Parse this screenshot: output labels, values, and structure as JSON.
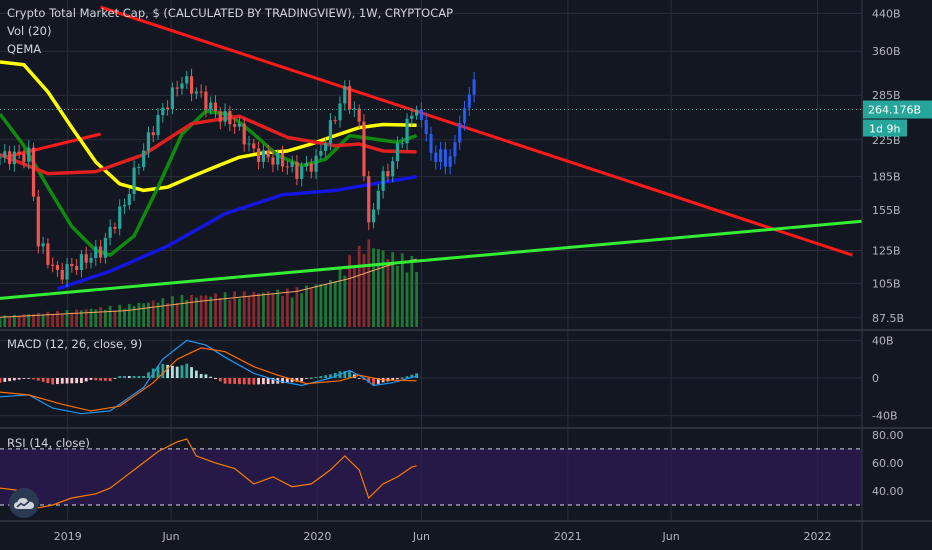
{
  "header": {
    "title": "Crypto Total Market Cap, $ (CALCULATED BY TRADINGVIEW), 1W, CRYPTOCAP",
    "vol_label": "Vol (20)",
    "qema_label": "QEMA"
  },
  "price_badge": {
    "value": "264.176B",
    "countdown": "1d 9h"
  },
  "macd_panel": {
    "label": "MACD (12, 26, close, 9)"
  },
  "rsi_panel": {
    "label": "RSI (14, close)"
  },
  "colors": {
    "background": "#131722",
    "up": "#26a69a",
    "down": "#ef5350",
    "projection": "#2962ff",
    "ema_yellow": "#ffff00",
    "ema_green": "#0f8a0f",
    "ema_red": "#e02020",
    "ema_blue": "#1515e0",
    "trend_red": "#ff1a1a",
    "trend_green": "#33ee33",
    "badge": "#26a69a",
    "rsi_line": "#f57c00",
    "rsi_band": "#311b5a"
  },
  "chart_data": [
    {
      "type": "candlestick",
      "name": "price",
      "y_scale": "log",
      "ylim": [
        82,
        460
      ],
      "y_ticks": [
        87.5,
        105,
        125,
        155,
        185,
        225,
        285,
        360,
        440
      ],
      "y_tick_labels": [
        "87.5B",
        "105B",
        "125B",
        "155B",
        "185B",
        "225B",
        "285B",
        "360B",
        "440B"
      ],
      "x_range": [
        "2018-09-24",
        "2022-03-07"
      ],
      "x_ticks": [
        "2019-01-01",
        "2019-06-01",
        "2020-01-01",
        "2020-06-01",
        "2021-01-01",
        "2021-06-01",
        "2022-01-01"
      ],
      "x_tick_labels": [
        "2019",
        "Jun",
        "2020",
        "Jun",
        "2021",
        "Jun",
        "2022"
      ],
      "last_price": 264.176,
      "close_anchors": [
        [
          "2018-09-24",
          205
        ],
        [
          "2018-11-05",
          208
        ],
        [
          "2018-11-19",
          130
        ],
        [
          "2018-12-17",
          110
        ],
        [
          "2019-01-21",
          118
        ],
        [
          "2019-02-18",
          125
        ],
        [
          "2019-03-25",
          160
        ],
        [
          "2019-05-06",
          240
        ],
        [
          "2019-06-17",
          310
        ],
        [
          "2019-07-08",
          290
        ],
        [
          "2019-08-05",
          260
        ],
        [
          "2019-09-02",
          245
        ],
        [
          "2019-09-30",
          210
        ],
        [
          "2019-10-21",
          205
        ],
        [
          "2019-11-11",
          200
        ],
        [
          "2019-12-02",
          190
        ],
        [
          "2019-12-30",
          200
        ],
        [
          "2020-01-20",
          240
        ],
        [
          "2020-02-10",
          290
        ],
        [
          "2020-03-02",
          245
        ],
        [
          "2020-03-16",
          140
        ],
        [
          "2020-03-30",
          175
        ],
        [
          "2020-04-20",
          200
        ],
        [
          "2020-05-11",
          245
        ],
        [
          "2020-05-25",
          264
        ]
      ],
      "projection_closes": [
        [
          "2020-06-01",
          250
        ],
        [
          "2020-06-08",
          232
        ],
        [
          "2020-06-15",
          210
        ],
        [
          "2020-06-22",
          200
        ],
        [
          "2020-06-29",
          214
        ],
        [
          "2020-07-06",
          195
        ],
        [
          "2020-07-13",
          206
        ],
        [
          "2020-07-20",
          222
        ],
        [
          "2020-07-27",
          246
        ],
        [
          "2020-08-03",
          266
        ],
        [
          "2020-08-10",
          286
        ],
        [
          "2020-08-17",
          310
        ]
      ],
      "series": [
        {
          "key": "ema_yellow",
          "points": [
            [
              "2018-09-24",
              340
            ],
            [
              "2018-10-29",
              335
            ],
            [
              "2018-12-03",
              290
            ],
            [
              "2019-01-07",
              240
            ],
            [
              "2019-02-11",
              200
            ],
            [
              "2019-03-18",
              178
            ],
            [
              "2019-04-22",
              172
            ],
            [
              "2019-05-27",
              175
            ],
            [
              "2019-07-01",
              185
            ],
            [
              "2019-08-05",
              195
            ],
            [
              "2019-09-09",
              205
            ],
            [
              "2019-10-14",
              210
            ],
            [
              "2019-11-18",
              212
            ],
            [
              "2019-12-23",
              220
            ],
            [
              "2020-01-27",
              230
            ],
            [
              "2020-03-02",
              240
            ],
            [
              "2020-04-06",
              244
            ],
            [
              "2020-05-25",
              243
            ]
          ]
        },
        {
          "key": "ema_green",
          "points": [
            [
              "2018-09-24",
              258
            ],
            [
              "2018-10-29",
              218
            ],
            [
              "2018-12-03",
              175
            ],
            [
              "2019-01-07",
              142
            ],
            [
              "2019-02-11",
              125
            ],
            [
              "2019-03-04",
              122
            ],
            [
              "2019-04-08",
              135
            ],
            [
              "2019-05-13",
              175
            ],
            [
              "2019-06-17",
              232
            ],
            [
              "2019-07-22",
              262
            ],
            [
              "2019-08-26",
              257
            ],
            [
              "2019-09-30",
              232
            ],
            [
              "2019-11-04",
              207
            ],
            [
              "2019-12-09",
              196
            ],
            [
              "2020-01-13",
              203
            ],
            [
              "2020-02-17",
              230
            ],
            [
              "2020-03-23",
              226
            ],
            [
              "2020-04-27",
              222
            ],
            [
              "2020-05-25",
              230
            ]
          ]
        },
        {
          "key": "ema_red",
          "points": [
            [
              "2018-09-24",
              208
            ],
            [
              "2018-12-03",
              188
            ],
            [
              "2019-02-11",
              190
            ],
            [
              "2019-04-22",
              208
            ],
            [
              "2019-07-01",
              245
            ],
            [
              "2019-09-09",
              255
            ],
            [
              "2019-11-18",
              228
            ],
            [
              "2020-01-27",
              218
            ],
            [
              "2020-03-02",
              220
            ],
            [
              "2020-04-06",
              212
            ],
            [
              "2020-05-25",
              211
            ]
          ]
        },
        {
          "key": "ema_blue",
          "points": [
            [
              "2018-12-17",
              102
            ],
            [
              "2019-03-04",
              112
            ],
            [
              "2019-05-27",
              128
            ],
            [
              "2019-08-19",
              152
            ],
            [
              "2019-11-11",
              168
            ],
            [
              "2020-01-27",
              172
            ],
            [
              "2020-05-25",
              185
            ]
          ]
        }
      ],
      "trendlines": [
        {
          "key": "trend_red",
          "from": [
            "2018-10-01",
            205
          ],
          "to": [
            "2019-02-18",
            232
          ]
        },
        {
          "key": "trend_red",
          "from": [
            "2019-02-18",
            455
          ],
          "to": [
            "2022-02-21",
            122
          ]
        },
        {
          "key": "trend_green",
          "from": [
            "2018-09-24",
            97
          ],
          "to": [
            "2022-03-07",
            146
          ]
        }
      ],
      "volume": [
        [
          "2018-09-24",
          3.5
        ],
        [
          "2018-12-17",
          5
        ],
        [
          "2019-03-25",
          7
        ],
        [
          "2019-06-17",
          10
        ],
        [
          "2019-09-02",
          11
        ],
        [
          "2019-11-25",
          12
        ],
        [
          "2020-01-20",
          15
        ],
        [
          "2020-02-24",
          24
        ],
        [
          "2020-03-16",
          28
        ],
        [
          "2020-04-13",
          24
        ],
        [
          "2020-05-18",
          22
        ],
        [
          "2020-05-25",
          21
        ]
      ],
      "volume_ma": [
        [
          "2018-09-24",
          3
        ],
        [
          "2019-03-25",
          5
        ],
        [
          "2019-07-15",
          8
        ],
        [
          "2019-12-02",
          11
        ],
        [
          "2020-02-17",
          15
        ],
        [
          "2020-04-13",
          19
        ],
        [
          "2020-05-25",
          21
        ]
      ]
    },
    {
      "type": "line",
      "name": "MACD",
      "ylim": [
        -50,
        50
      ],
      "y_ticks": [
        40,
        0,
        -40
      ],
      "y_tick_labels": [
        "40B",
        "0",
        "-40B"
      ],
      "macd": [
        [
          "2018-09-24",
          -20
        ],
        [
          "2018-11-05",
          -18
        ],
        [
          "2018-12-10",
          -32
        ],
        [
          "2019-01-21",
          -38
        ],
        [
          "2019-03-04",
          -35
        ],
        [
          "2019-04-22",
          -10
        ],
        [
          "2019-05-20",
          20
        ],
        [
          "2019-06-24",
          40
        ],
        [
          "2019-07-22",
          35
        ],
        [
          "2019-08-19",
          22
        ],
        [
          "2019-09-30",
          5
        ],
        [
          "2019-11-04",
          -3
        ],
        [
          "2019-12-09",
          -8
        ],
        [
          "2020-01-20",
          0
        ],
        [
          "2020-02-17",
          8
        ],
        [
          "2020-03-09",
          0
        ],
        [
          "2020-03-23",
          -8
        ],
        [
          "2020-04-20",
          -5
        ],
        [
          "2020-05-25",
          2
        ]
      ],
      "signal": [
        [
          "2018-09-24",
          -15
        ],
        [
          "2018-11-05",
          -18
        ],
        [
          "2018-12-24",
          -28
        ],
        [
          "2019-02-04",
          -35
        ],
        [
          "2019-03-18",
          -30
        ],
        [
          "2019-05-06",
          -5
        ],
        [
          "2019-06-10",
          20
        ],
        [
          "2019-07-15",
          32
        ],
        [
          "2019-08-19",
          28
        ],
        [
          "2019-09-30",
          12
        ],
        [
          "2019-11-04",
          3
        ],
        [
          "2019-12-16",
          -6
        ],
        [
          "2020-02-03",
          -3
        ],
        [
          "2020-03-02",
          3
        ],
        [
          "2020-04-06",
          -2
        ],
        [
          "2020-05-25",
          -3
        ]
      ]
    },
    {
      "type": "line",
      "name": "RSI",
      "ylim": [
        25,
        82
      ],
      "y_ticks": [
        80,
        60,
        40
      ],
      "y_tick_labels": [
        "80.00",
        "60.00",
        "40.00"
      ],
      "bands": [
        30,
        70
      ],
      "values": [
        [
          "2018-09-24",
          42
        ],
        [
          "2018-10-29",
          40
        ],
        [
          "2018-11-19",
          28
        ],
        [
          "2018-12-10",
          30
        ],
        [
          "2019-01-07",
          35
        ],
        [
          "2019-02-11",
          38
        ],
        [
          "2019-03-04",
          42
        ],
        [
          "2019-04-08",
          55
        ],
        [
          "2019-05-13",
          68
        ],
        [
          "2019-06-10",
          75
        ],
        [
          "2019-06-24",
          77
        ],
        [
          "2019-07-08",
          65
        ],
        [
          "2019-08-05",
          60
        ],
        [
          "2019-09-02",
          56
        ],
        [
          "2019-09-30",
          45
        ],
        [
          "2019-10-28",
          50
        ],
        [
          "2019-11-25",
          43
        ],
        [
          "2019-12-23",
          45
        ],
        [
          "2020-01-20",
          55
        ],
        [
          "2020-02-10",
          65
        ],
        [
          "2020-03-02",
          55
        ],
        [
          "2020-03-16",
          35
        ],
        [
          "2020-04-06",
          45
        ],
        [
          "2020-04-27",
          50
        ],
        [
          "2020-05-18",
          57
        ],
        [
          "2020-05-25",
          58
        ]
      ]
    }
  ]
}
